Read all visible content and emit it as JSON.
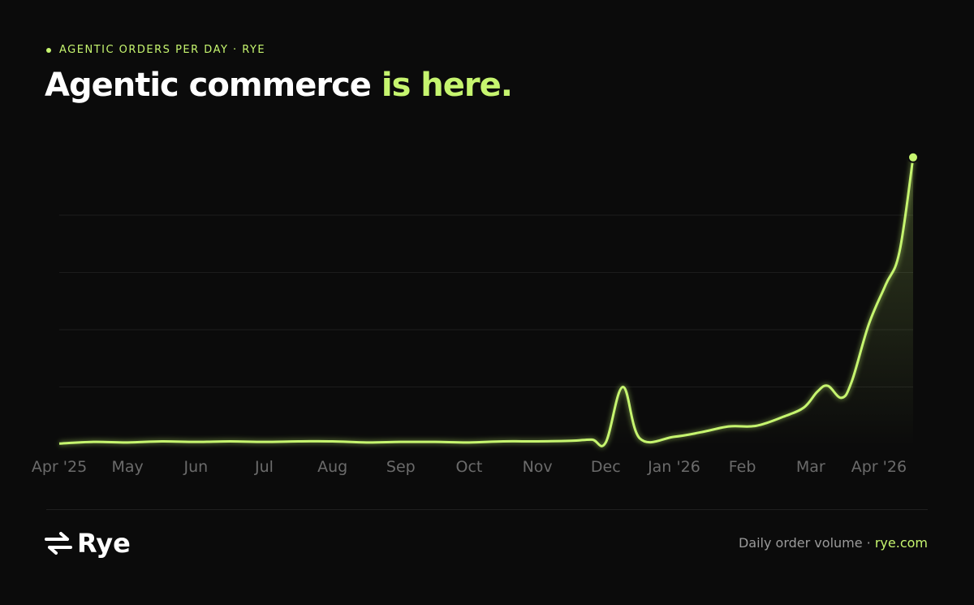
{
  "eyebrow": "AGENTIC ORDERS PER DAY · RYE",
  "title": "Agentic commerce",
  "title_highlight": "is here.",
  "logo": "Rye",
  "footer": "Daily order volume ·",
  "footer_link": "rye.com",
  "chart_data": {
    "type": "line",
    "x": [
      0,
      0.5,
      1,
      1.5,
      2,
      2.5,
      3,
      3.5,
      4,
      4.5,
      5,
      5.5,
      6,
      6.5,
      7,
      7.5,
      7.8,
      8,
      8.25,
      8.5,
      9,
      9.4,
      9.8,
      10.1,
      10.3,
      10.6,
      10.9,
      11.1,
      11.25,
      11.45,
      11.6,
      11.85,
      12.1,
      12.3,
      12.5
    ],
    "series": [
      {
        "color": "#c6f56f",
        "values": [
          0.01,
          0.04,
          0.03,
          0.05,
          0.04,
          0.05,
          0.04,
          0.05,
          0.05,
          0.03,
          0.04,
          0.04,
          0.03,
          0.05,
          0.05,
          0.06,
          0.08,
          0.03,
          1.0,
          0.1,
          0.13,
          0.21,
          0.31,
          0.31,
          0.35,
          0.48,
          0.64,
          0.92,
          1.02,
          0.81,
          1.09,
          2.09,
          2.79,
          3.36,
          5.01
        ]
      }
    ],
    "xlim": [
      0,
      12.5
    ],
    "xticks": [
      {
        "value": 0,
        "label": "Apr '25"
      },
      {
        "value": 1,
        "label": "May"
      },
      {
        "value": 2,
        "label": "Jun"
      },
      {
        "value": 3,
        "label": "Jul"
      },
      {
        "value": 4,
        "label": "Aug"
      },
      {
        "value": 5,
        "label": "Sep"
      },
      {
        "value": 6,
        "label": "Oct"
      },
      {
        "value": 7,
        "label": "Nov"
      },
      {
        "value": 8,
        "label": "Dec"
      },
      {
        "value": 9,
        "label": "Jan '26"
      },
      {
        "value": 10,
        "label": "Feb"
      },
      {
        "value": 11,
        "label": "Mar"
      },
      {
        "value": 12,
        "label": "Apr '26"
      }
    ],
    "ylim": [
      0,
      5.2
    ],
    "yticks": [
      1,
      2,
      3,
      4
    ],
    "grid": true
  }
}
